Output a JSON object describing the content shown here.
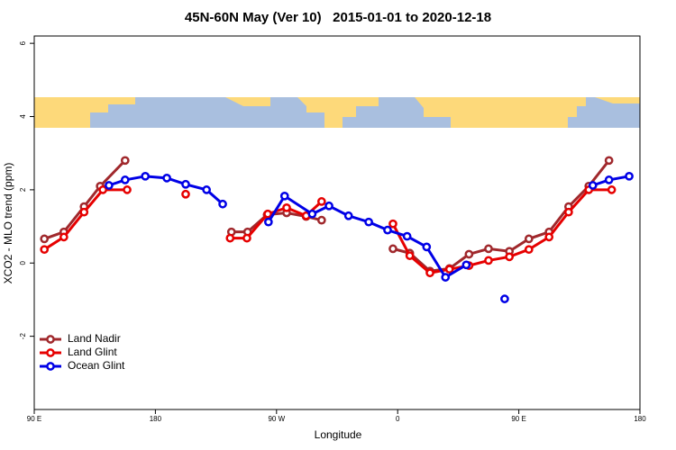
{
  "chart_data": {
    "type": "line",
    "title": "45N-60N May (Ver 10)   2015-01-01 to 2020-12-18",
    "xlabel": "Longitude",
    "ylabel": "XCO2 - MLO trend (ppm)",
    "xlim": [
      90,
      540
    ],
    "ylim": [
      -4,
      6.2
    ],
    "xticks": [
      {
        "value": 90,
        "label": "90 E"
      },
      {
        "value": 180,
        "label": "180"
      },
      {
        "value": 270,
        "label": "90 W"
      },
      {
        "value": 360,
        "label": "0"
      },
      {
        "value": 450,
        "label": "90 E"
      },
      {
        "value": 540,
        "label": "180"
      }
    ],
    "yticks": [
      -2,
      0,
      2,
      4,
      6
    ],
    "legend": "bottom-left",
    "series": [
      {
        "name": "Land Nadir",
        "color": "#a0282c",
        "x": [
          97.5,
          112,
          127,
          139,
          157.5,
          172.5,
          236.5,
          248.5,
          263,
          277.5,
          292,
          303.5,
          330,
          356.5,
          369,
          384,
          398.5,
          413,
          427.5,
          443,
          457.5,
          472.5,
          487,
          502,
          517
        ],
        "values": [
          0.66,
          0.85,
          1.54,
          2.1,
          2.8,
          null,
          0.85,
          0.85,
          1.32,
          1.37,
          1.27,
          1.17,
          null,
          0.39,
          0.27,
          -0.22,
          -0.15,
          0.24,
          0.39,
          0.32,
          0.66,
          0.85,
          1.54,
          2.1,
          2.8
        ]
      },
      {
        "name": "Land Glint",
        "color": "#e60000",
        "x": [
          97.5,
          112,
          127,
          141,
          159,
          180,
          202.5,
          220,
          235.5,
          248,
          263.5,
          277.5,
          292,
          303.5,
          330,
          356.5,
          369,
          384,
          398.5,
          413,
          427.5,
          443,
          457.5,
          472.5,
          487,
          502,
          519
        ],
        "values": [
          0.37,
          0.71,
          1.39,
          2.0,
          2.0,
          null,
          1.88,
          null,
          0.68,
          0.68,
          1.34,
          1.51,
          1.29,
          1.68,
          null,
          1.07,
          0.2,
          -0.27,
          -0.17,
          -0.07,
          0.07,
          0.17,
          0.37,
          0.71,
          1.39,
          2.0,
          2.0
        ]
      },
      {
        "name": "Ocean Glint",
        "color": "#0000e6",
        "x": [
          145.5,
          157.5,
          172.5,
          188.5,
          202.5,
          218,
          230,
          247,
          264,
          276,
          296.5,
          309,
          323.5,
          338.5,
          352.5,
          367,
          381.5,
          395.5,
          411,
          425,
          439.5,
          470,
          505,
          517,
          532
        ],
        "values": [
          2.12,
          2.27,
          2.37,
          2.32,
          2.15,
          2.0,
          1.61,
          null,
          1.12,
          1.83,
          1.34,
          1.56,
          1.29,
          1.12,
          0.9,
          0.73,
          0.44,
          -0.39,
          -0.05,
          null,
          -0.98,
          null,
          2.12,
          2.27,
          2.37
        ]
      }
    ]
  }
}
